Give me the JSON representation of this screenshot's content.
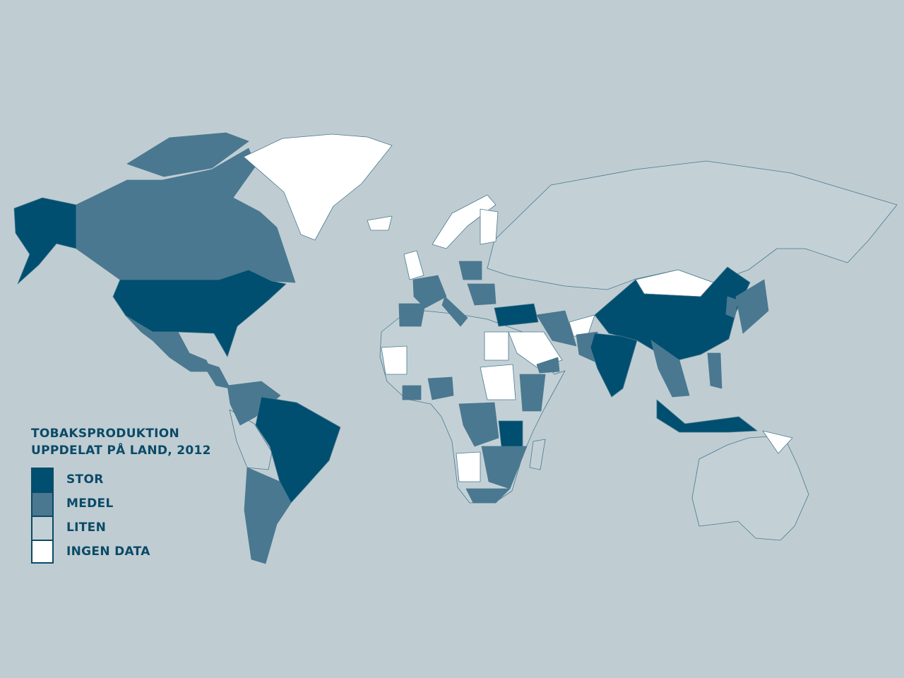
{
  "legend": {
    "title_line1": "TOBAKSPRODUKTION",
    "title_line2": "UPPDELAT PÅ LAND, 2012",
    "items": [
      {
        "label": "STOR",
        "color": "#004f70"
      },
      {
        "label": "MEDEL",
        "color": "#4a7890"
      },
      {
        "label": "LITEN",
        "color": "#c3d1d6"
      },
      {
        "label": "INGEN DATA",
        "color": "#ffffff"
      }
    ]
  },
  "colors": {
    "background": "#bfcdd2",
    "border": "#4a7890"
  },
  "regions": [
    {
      "name": "russia",
      "category": "LITEN"
    },
    {
      "name": "africa",
      "category": "LITEN"
    },
    {
      "name": "australia",
      "category": "LITEN"
    },
    {
      "name": "peru-bolivia",
      "category": "LITEN"
    },
    {
      "name": "madagascar",
      "category": "LITEN"
    },
    {
      "name": "alaska",
      "category": "STOR"
    },
    {
      "name": "canada",
      "category": "MEDEL"
    },
    {
      "name": "canada-arctic",
      "category": "MEDEL"
    },
    {
      "name": "greenland",
      "category": "INGEN DATA"
    },
    {
      "name": "usa",
      "category": "STOR"
    },
    {
      "name": "mexico",
      "category": "MEDEL"
    },
    {
      "name": "central-america",
      "category": "MEDEL"
    },
    {
      "name": "colombia-venezuela",
      "category": "MEDEL"
    },
    {
      "name": "brazil",
      "category": "STOR"
    },
    {
      "name": "argentina",
      "category": "MEDEL"
    },
    {
      "name": "iceland",
      "category": "INGEN DATA"
    },
    {
      "name": "uk",
      "category": "INGEN DATA"
    },
    {
      "name": "norway",
      "category": "INGEN DATA"
    },
    {
      "name": "finland",
      "category": "INGEN DATA"
    },
    {
      "name": "france",
      "category": "MEDEL"
    },
    {
      "name": "spain",
      "category": "MEDEL"
    },
    {
      "name": "italy",
      "category": "MEDEL"
    },
    {
      "name": "poland",
      "category": "MEDEL"
    },
    {
      "name": "balkans",
      "category": "MEDEL"
    },
    {
      "name": "turkey",
      "category": "STOR"
    },
    {
      "name": "mauritania",
      "category": "INGEN DATA"
    },
    {
      "name": "egypt",
      "category": "INGEN DATA"
    },
    {
      "name": "sudan",
      "category": "INGEN DATA"
    },
    {
      "name": "saudi-arabia",
      "category": "INGEN DATA"
    },
    {
      "name": "nigeria",
      "category": "MEDEL"
    },
    {
      "name": "ivory-coast",
      "category": "MEDEL"
    },
    {
      "name": "ethiopia-kenya",
      "category": "MEDEL"
    },
    {
      "name": "congo",
      "category": "MEDEL"
    },
    {
      "name": "tanzania",
      "category": "STOR"
    },
    {
      "name": "angola",
      "category": "INGEN DATA"
    },
    {
      "name": "southern-africa",
      "category": "MEDEL"
    },
    {
      "name": "south-africa",
      "category": "MEDEL"
    },
    {
      "name": "iran",
      "category": "MEDEL"
    },
    {
      "name": "afghanistan",
      "category": "INGEN DATA"
    },
    {
      "name": "pakistan",
      "category": "MEDEL"
    },
    {
      "name": "yemen",
      "category": "MEDEL"
    },
    {
      "name": "mongolia",
      "category": "INGEN DATA"
    },
    {
      "name": "china",
      "category": "STOR"
    },
    {
      "name": "india",
      "category": "STOR"
    },
    {
      "name": "southeast-asia",
      "category": "MEDEL"
    },
    {
      "name": "japan",
      "category": "MEDEL"
    },
    {
      "name": "korea",
      "category": "MEDEL"
    },
    {
      "name": "philippines",
      "category": "MEDEL"
    },
    {
      "name": "indonesia",
      "category": "STOR"
    },
    {
      "name": "papua-new-guinea",
      "category": "INGEN DATA"
    }
  ]
}
